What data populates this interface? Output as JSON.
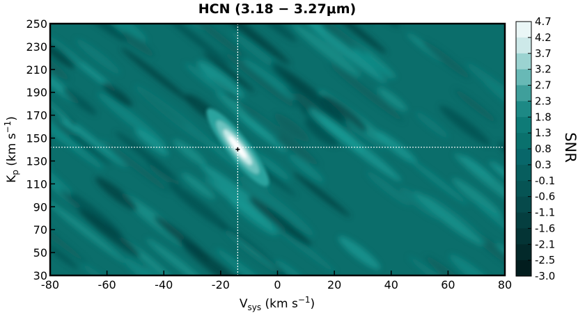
{
  "chart_data": {
    "type": "heatmap",
    "title": "HCN (3.18 − 3.27μm)",
    "xlabel": "V_sys (km s⁻¹)",
    "ylabel": "K_p (km s⁻¹)",
    "xlim": [
      -80,
      80
    ],
    "ylim": [
      30,
      250
    ],
    "x_ticks": [
      -80,
      -60,
      -40,
      -20,
      0,
      20,
      40,
      60,
      80
    ],
    "y_ticks": [
      30,
      50,
      70,
      90,
      110,
      130,
      150,
      170,
      190,
      210,
      230,
      250
    ],
    "peak": {
      "vsys": -14,
      "kp": 142
    },
    "crosshair": {
      "vsys": -14,
      "kp": 142
    },
    "colorbar": {
      "label": "SNR",
      "ticks": [
        "4.7",
        "4.2",
        "3.7",
        "3.2",
        "2.7",
        "2.3",
        "1.8",
        "1.3",
        "0.8",
        "0.3",
        "-0.1",
        "-0.6",
        "-1.1",
        "-1.6",
        "-2.1",
        "-2.5",
        "-3.0"
      ],
      "colors": [
        "#eaf6f6",
        "#cde9e9",
        "#9bd3d1",
        "#68b9b6",
        "#3f9f9b",
        "#1d8985",
        "#0e7b77",
        "#0a716d",
        "#08676a",
        "#075e5e",
        "#065454",
        "#064a4b",
        "#053f40",
        "#043435",
        "#03292a",
        "#021d1e"
      ]
    },
    "grid": false
  },
  "text": {
    "title_main": "HCN (3.18 − 3.27",
    "title_mu": "μm",
    "title_close": ")",
    "x_v": "V",
    "x_sub": "sys",
    "x_unit": "(km s",
    "x_sup": "−1",
    "x_close": ")",
    "y_k": "K",
    "y_sub": "p",
    "y_unit": "(km s",
    "y_sup": "−1",
    "y_close": ")",
    "snr": "SNR"
  }
}
